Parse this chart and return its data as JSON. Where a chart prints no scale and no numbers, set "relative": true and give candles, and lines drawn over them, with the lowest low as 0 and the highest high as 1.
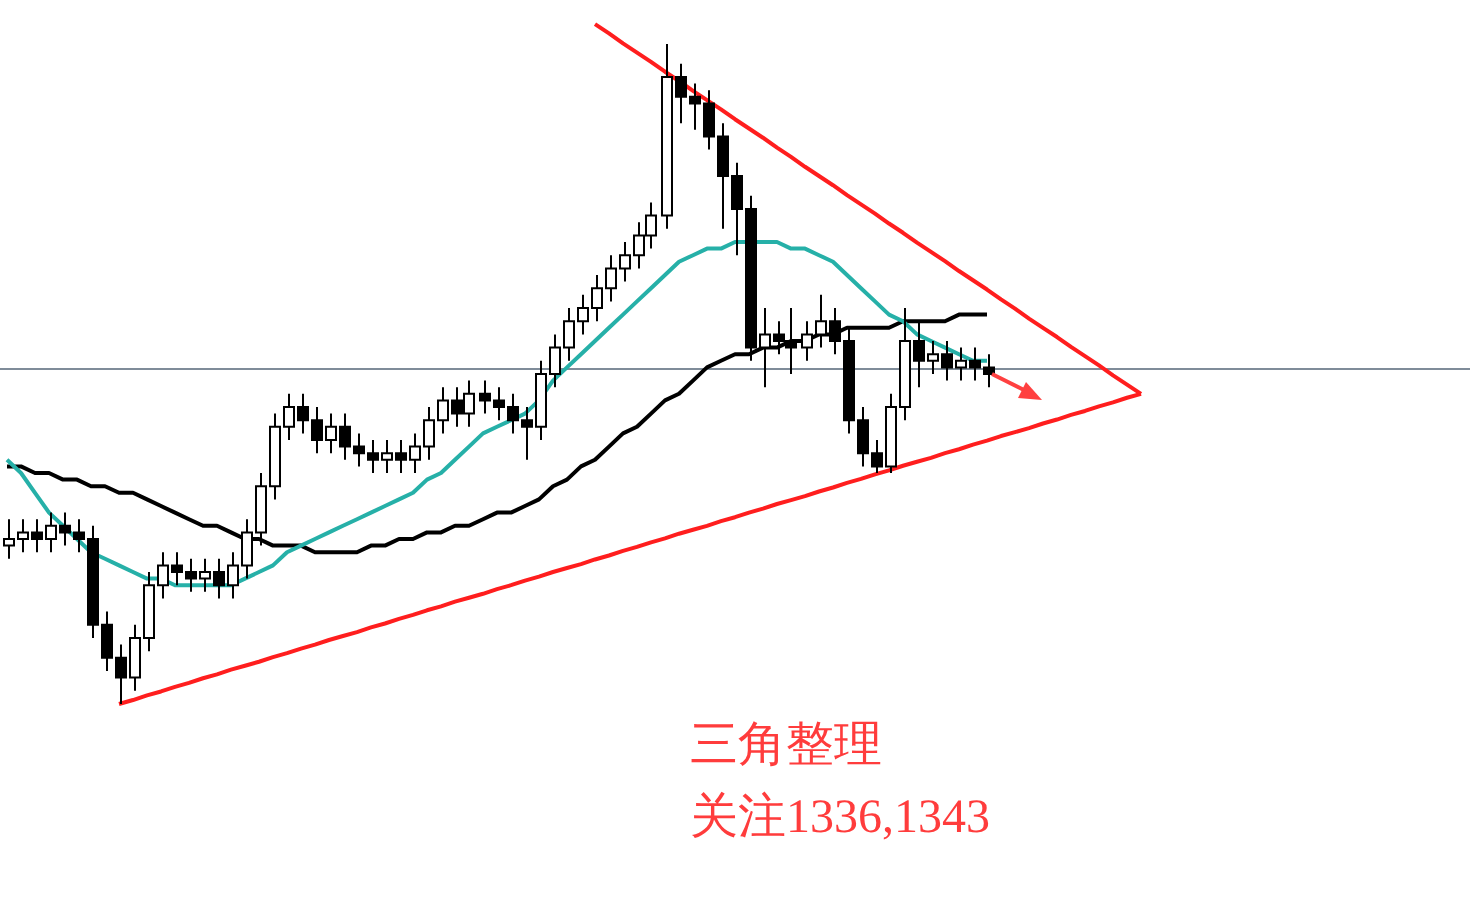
{
  "chart_data": {
    "type": "candlestick",
    "relative": true,
    "categories": [
      null,
      null,
      null,
      null,
      null,
      null,
      null,
      null,
      null,
      null,
      null,
      null,
      null,
      null,
      null,
      null,
      null,
      null,
      null,
      null,
      null,
      null,
      null,
      null,
      null,
      null,
      null,
      null,
      null,
      null,
      null,
      null,
      null,
      null,
      null,
      null,
      null,
      null,
      null,
      null,
      null,
      null,
      null,
      null,
      null,
      null,
      null,
      null,
      null,
      null,
      null,
      null,
      null,
      null,
      null,
      null,
      null,
      null,
      null,
      null,
      null,
      null,
      null,
      null,
      null,
      null,
      null,
      null,
      null,
      null,
      null,
      null,
      null,
      null,
      null,
      null,
      null,
      null,
      null,
      null,
      null,
      null
    ],
    "ohlc": [
      [
        0.24,
        0.28,
        0.22,
        0.25
      ],
      [
        0.25,
        0.28,
        0.23,
        0.26
      ],
      [
        0.26,
        0.28,
        0.23,
        0.25
      ],
      [
        0.25,
        0.29,
        0.23,
        0.27
      ],
      [
        0.27,
        0.29,
        0.24,
        0.26
      ],
      [
        0.26,
        0.28,
        0.23,
        0.25
      ],
      [
        0.25,
        0.27,
        0.1,
        0.12
      ],
      [
        0.12,
        0.14,
        0.05,
        0.07
      ],
      [
        0.07,
        0.09,
        0.0,
        0.04
      ],
      [
        0.04,
        0.12,
        0.02,
        0.1
      ],
      [
        0.1,
        0.2,
        0.08,
        0.18
      ],
      [
        0.18,
        0.23,
        0.16,
        0.21
      ],
      [
        0.21,
        0.23,
        0.18,
        0.2
      ],
      [
        0.2,
        0.22,
        0.17,
        0.19
      ],
      [
        0.19,
        0.22,
        0.17,
        0.2
      ],
      [
        0.2,
        0.22,
        0.16,
        0.18
      ],
      [
        0.18,
        0.23,
        0.16,
        0.21
      ],
      [
        0.21,
        0.28,
        0.19,
        0.26
      ],
      [
        0.26,
        0.35,
        0.24,
        0.33
      ],
      [
        0.33,
        0.44,
        0.31,
        0.42
      ],
      [
        0.42,
        0.47,
        0.4,
        0.45
      ],
      [
        0.45,
        0.47,
        0.41,
        0.43
      ],
      [
        0.43,
        0.45,
        0.38,
        0.4
      ],
      [
        0.4,
        0.44,
        0.38,
        0.42
      ],
      [
        0.42,
        0.44,
        0.37,
        0.39
      ],
      [
        0.39,
        0.41,
        0.36,
        0.38
      ],
      [
        0.38,
        0.4,
        0.35,
        0.37
      ],
      [
        0.37,
        0.4,
        0.35,
        0.38
      ],
      [
        0.38,
        0.4,
        0.35,
        0.37
      ],
      [
        0.37,
        0.41,
        0.35,
        0.39
      ],
      [
        0.39,
        0.45,
        0.37,
        0.43
      ],
      [
        0.43,
        0.48,
        0.41,
        0.46
      ],
      [
        0.46,
        0.48,
        0.42,
        0.44
      ],
      [
        0.44,
        0.49,
        0.42,
        0.47
      ],
      [
        0.47,
        0.49,
        0.44,
        0.46
      ],
      [
        0.46,
        0.48,
        0.43,
        0.45
      ],
      [
        0.45,
        0.47,
        0.41,
        0.43
      ],
      [
        0.43,
        0.45,
        0.37,
        0.42
      ],
      [
        0.42,
        0.52,
        0.4,
        0.5
      ],
      [
        0.5,
        0.56,
        0.48,
        0.54
      ],
      [
        0.54,
        0.6,
        0.52,
        0.58
      ],
      [
        0.58,
        0.62,
        0.56,
        0.6
      ],
      [
        0.6,
        0.65,
        0.58,
        0.63
      ],
      [
        0.63,
        0.68,
        0.61,
        0.66
      ],
      [
        0.66,
        0.7,
        0.64,
        0.68
      ],
      [
        0.68,
        0.73,
        0.66,
        0.71
      ],
      [
        0.71,
        0.76,
        0.69,
        0.74
      ],
      [
        0.74,
        1.0,
        0.72,
        0.95
      ],
      [
        0.95,
        0.97,
        0.88,
        0.92
      ],
      [
        0.92,
        0.94,
        0.87,
        0.91
      ],
      [
        0.91,
        0.93,
        0.84,
        0.86
      ],
      [
        0.86,
        0.88,
        0.72,
        0.8
      ],
      [
        0.8,
        0.82,
        0.68,
        0.75
      ],
      [
        0.75,
        0.77,
        0.52,
        0.54
      ],
      [
        0.54,
        0.6,
        0.48,
        0.56
      ],
      [
        0.56,
        0.58,
        0.53,
        0.55
      ],
      [
        0.55,
        0.6,
        0.5,
        0.54
      ],
      [
        0.54,
        0.58,
        0.52,
        0.56
      ],
      [
        0.56,
        0.62,
        0.54,
        0.58
      ],
      [
        0.58,
        0.6,
        0.53,
        0.55
      ],
      [
        0.55,
        0.57,
        0.41,
        0.43
      ],
      [
        0.43,
        0.45,
        0.36,
        0.38
      ],
      [
        0.38,
        0.4,
        0.35,
        0.36
      ],
      [
        0.36,
        0.47,
        0.35,
        0.45
      ],
      [
        0.45,
        0.6,
        0.43,
        0.55
      ],
      [
        0.55,
        0.58,
        0.48,
        0.52
      ],
      [
        0.52,
        0.55,
        0.5,
        0.53
      ],
      [
        0.53,
        0.55,
        0.49,
        0.51
      ],
      [
        0.51,
        0.54,
        0.49,
        0.52
      ],
      [
        0.52,
        0.54,
        0.49,
        0.51
      ],
      [
        0.51,
        0.53,
        0.48,
        0.5
      ],
      null,
      null,
      null,
      null,
      null,
      null,
      null,
      null,
      null,
      null,
      null
    ],
    "series": [
      {
        "type": "line",
        "color": "#26b0a8",
        "values": [
          0.37,
          0.35,
          0.32,
          0.29,
          0.27,
          0.25,
          0.23,
          0.22,
          0.21,
          0.2,
          0.19,
          0.19,
          0.18,
          0.18,
          0.18,
          0.18,
          0.18,
          0.19,
          0.2,
          0.21,
          0.23,
          0.24,
          0.25,
          0.26,
          0.27,
          0.28,
          0.29,
          0.3,
          0.31,
          0.32,
          0.34,
          0.35,
          0.37,
          0.39,
          0.41,
          0.42,
          0.43,
          0.44,
          0.46,
          0.49,
          0.51,
          0.53,
          0.55,
          0.57,
          0.59,
          0.61,
          0.63,
          0.65,
          0.67,
          0.68,
          0.69,
          0.69,
          0.7,
          0.7,
          0.7,
          0.7,
          0.69,
          0.69,
          0.68,
          0.67,
          0.65,
          0.63,
          0.61,
          0.59,
          0.58,
          0.56,
          0.55,
          0.54,
          0.53,
          0.52,
          0.52,
          null,
          null,
          null,
          null,
          null,
          null,
          null,
          null,
          null,
          null,
          null
        ]
      },
      {
        "type": "line",
        "color": "#000000",
        "values": [
          0.36,
          0.36,
          0.35,
          0.35,
          0.34,
          0.34,
          0.33,
          0.33,
          0.32,
          0.32,
          0.31,
          0.3,
          0.29,
          0.28,
          0.27,
          0.27,
          0.26,
          0.25,
          0.25,
          0.24,
          0.24,
          0.24,
          0.23,
          0.23,
          0.23,
          0.23,
          0.24,
          0.24,
          0.25,
          0.25,
          0.26,
          0.26,
          0.27,
          0.27,
          0.28,
          0.29,
          0.29,
          0.3,
          0.31,
          0.33,
          0.34,
          0.36,
          0.37,
          0.39,
          0.41,
          0.42,
          0.44,
          0.46,
          0.47,
          0.49,
          0.51,
          0.52,
          0.53,
          0.53,
          0.54,
          0.54,
          0.55,
          0.55,
          0.56,
          0.56,
          0.57,
          0.57,
          0.57,
          0.57,
          0.58,
          0.58,
          0.58,
          0.58,
          0.59,
          0.59,
          0.59,
          null,
          null,
          null,
          null,
          null,
          null,
          null,
          null,
          null,
          null,
          null
        ]
      },
      {
        "type": "line",
        "color": "#ff1e1e",
        "values": [
          null,
          null,
          null,
          null,
          null,
          null,
          null,
          null,
          null,
          null,
          null,
          null,
          null,
          null,
          null,
          null,
          null,
          null,
          null,
          null,
          null,
          null,
          null,
          null,
          null,
          null,
          null,
          null,
          null,
          null,
          null,
          null,
          null,
          null,
          null,
          null,
          null,
          null,
          null,
          null,
          null,
          null,
          1.03,
          1.016,
          1.001,
          0.987,
          0.973,
          0.958,
          0.944,
          0.929,
          0.915,
          0.901,
          0.886,
          0.872,
          0.858,
          0.843,
          0.829,
          0.814,
          0.8,
          0.786,
          0.771,
          0.757,
          0.743,
          0.728,
          0.714,
          0.699,
          0.685,
          0.671,
          0.656,
          0.642,
          0.628,
          0.613,
          0.599,
          0.584,
          0.57,
          0.556,
          0.541,
          0.527,
          0.513,
          0.498,
          0.484,
          0.47
        ]
      },
      {
        "type": "line",
        "color": "#ff1e1e",
        "values": [
          null,
          null,
          null,
          null,
          null,
          null,
          null,
          null,
          0,
          0.006,
          0.013,
          0.019,
          0.026,
          0.032,
          0.039,
          0.045,
          0.052,
          0.058,
          0.064,
          0.071,
          0.077,
          0.084,
          0.09,
          0.097,
          0.103,
          0.109,
          0.116,
          0.122,
          0.129,
          0.135,
          0.142,
          0.148,
          0.155,
          0.161,
          0.167,
          0.174,
          0.18,
          0.187,
          0.193,
          0.2,
          0.206,
          0.212,
          0.219,
          0.225,
          0.232,
          0.238,
          0.245,
          0.251,
          0.258,
          0.264,
          0.27,
          0.277,
          0.283,
          0.29,
          0.296,
          0.303,
          0.309,
          0.315,
          0.322,
          0.328,
          0.335,
          0.341,
          0.348,
          0.354,
          0.361,
          0.367,
          0.373,
          0.38,
          0.386,
          0.393,
          0.399,
          0.406,
          0.412,
          0.418,
          0.425,
          0.431,
          0.438,
          0.444,
          0.451,
          0.457,
          0.464,
          0.47
        ]
      }
    ],
    "ref_lines": [
      {
        "axis": "y",
        "value": 0.51,
        "color": "#7f8c99"
      }
    ],
    "annotations": [
      "三角整理",
      "关注1336,1343"
    ]
  }
}
